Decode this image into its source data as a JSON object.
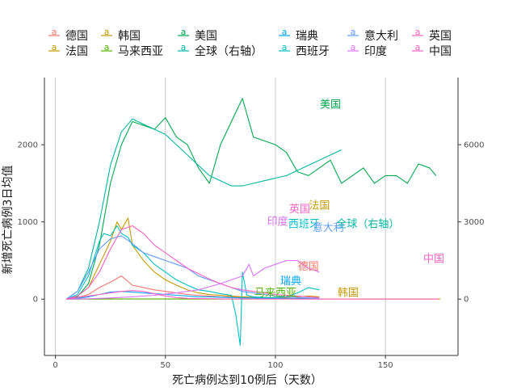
{
  "chart_data": {
    "type": "line",
    "title": "",
    "xlabel": "死亡病例达到10例后（天数）",
    "ylabel": "新增死亡病例3日均值",
    "y2label": "",
    "xlim": [
      -5,
      183
    ],
    "ylim": [
      -730,
      2870
    ],
    "y2lim": [
      -2190,
      8610
    ],
    "xticks": [
      0,
      50,
      100,
      150
    ],
    "yticks": [
      0,
      1000,
      2000
    ],
    "y2ticks": [
      0,
      3000,
      6000
    ],
    "grid": "vertical",
    "legend_position": "top",
    "series": [
      {
        "name": "德国",
        "color": "#F8766D",
        "axis": "left",
        "label_at": [
          115,
          380
        ],
        "x": [
          5,
          10,
          15,
          20,
          25,
          30,
          35,
          40,
          45,
          50,
          55,
          60,
          65,
          70,
          75,
          80,
          85,
          90,
          95,
          100,
          105,
          110,
          115,
          120
        ],
        "y": [
          0,
          20,
          60,
          150,
          220,
          300,
          180,
          150,
          120,
          100,
          80,
          60,
          50,
          40,
          30,
          30,
          20,
          20,
          15,
          10,
          10,
          8,
          5,
          5
        ]
      },
      {
        "name": "法国",
        "color": "#C49A00",
        "axis": "left",
        "label_at": [
          120,
          1170
        ],
        "x": [
          5,
          10,
          15,
          20,
          25,
          28,
          30,
          33,
          35,
          40,
          45,
          50,
          55,
          60,
          65,
          70,
          75,
          80,
          85,
          90,
          95,
          100,
          105,
          110,
          115,
          120
        ],
        "y": [
          0,
          40,
          150,
          450,
          750,
          1000,
          900,
          1050,
          700,
          500,
          350,
          250,
          180,
          120,
          80,
          60,
          50,
          40,
          30,
          25,
          20,
          15,
          20,
          30,
          40,
          30
        ]
      },
      {
        "name": "韩国",
        "color": "#C49A00",
        "axis": "left",
        "label_at": [
          133,
          40
        ],
        "x": [
          5,
          20,
          40,
          60,
          80,
          100,
          120,
          140,
          160,
          175
        ],
        "y": [
          0,
          2,
          3,
          2,
          2,
          1,
          3,
          2,
          1,
          1
        ]
      },
      {
        "name": "马来西亚",
        "color": "#53B400",
        "axis": "left",
        "label_at": [
          100,
          40
        ],
        "x": [
          5,
          20,
          40,
          60,
          80,
          90,
          100,
          110,
          120
        ],
        "y": [
          0,
          1,
          2,
          1,
          1,
          2,
          5,
          8,
          10
        ]
      },
      {
        "name": "美国",
        "color": "#00A94F",
        "axis": "left",
        "label_at": [
          125,
          2480
        ],
        "x": [
          5,
          10,
          15,
          20,
          25,
          30,
          35,
          40,
          45,
          50,
          55,
          60,
          65,
          70,
          75,
          80,
          85,
          90,
          95,
          100,
          105,
          110,
          115,
          120,
          125,
          130,
          135,
          140,
          145,
          150,
          155,
          160,
          165,
          170,
          173
        ],
        "y": [
          0,
          30,
          200,
          700,
          1500,
          2000,
          2300,
          2250,
          2200,
          2350,
          2100,
          2000,
          1700,
          1500,
          2000,
          2300,
          2600,
          2100,
          2050,
          2000,
          1900,
          1650,
          1600,
          1700,
          1800,
          1500,
          1600,
          1700,
          1500,
          1600,
          1600,
          1500,
          1750,
          1700,
          1600
        ]
      },
      {
        "name": "全球（右轴）",
        "color": "#00B6A2",
        "axis": "right",
        "label_at": [
          142,
          2780
        ],
        "x": [
          5,
          10,
          15,
          20,
          25,
          30,
          35,
          40,
          45,
          50,
          55,
          60,
          65,
          70,
          75,
          80,
          85,
          90,
          95,
          100,
          105,
          110,
          115,
          120,
          125,
          130
        ],
        "y": [
          0,
          300,
          1200,
          3000,
          5200,
          6500,
          7000,
          6800,
          6600,
          6400,
          6000,
          5600,
          5200,
          4800,
          4600,
          4400,
          4400,
          4500,
          4600,
          4700,
          4800,
          5000,
          5200,
          5400,
          5600,
          5800
        ]
      },
      {
        "name": "瑞典",
        "color": "#00A5FF",
        "axis": "left",
        "label_at": [
          107,
          190
        ],
        "x": [
          5,
          10,
          15,
          20,
          25,
          30,
          35,
          40,
          45,
          50,
          55,
          60,
          65,
          70,
          75,
          80,
          85,
          90,
          95,
          100,
          105,
          110,
          115,
          120
        ],
        "y": [
          0,
          10,
          30,
          60,
          90,
          100,
          90,
          80,
          70,
          60,
          50,
          40,
          30,
          30,
          25,
          20,
          15,
          15,
          10,
          10,
          10,
          8,
          5,
          5
        ]
      },
      {
        "name": "西班牙",
        "color": "#00BFC4",
        "axis": "left",
        "label_at": [
          113,
          930
        ],
        "x": [
          5,
          10,
          15,
          20,
          22,
          25,
          28,
          30,
          33,
          35,
          40,
          45,
          50,
          55,
          60,
          65,
          70,
          75,
          80,
          82,
          84,
          85,
          86,
          87,
          90,
          95,
          100,
          105,
          110,
          115,
          120
        ],
        "y": [
          0,
          60,
          300,
          750,
          850,
          820,
          950,
          850,
          800,
          700,
          600,
          450,
          350,
          250,
          180,
          120,
          100,
          70,
          50,
          -200,
          -600,
          350,
          200,
          50,
          30,
          20,
          20,
          30,
          80,
          150,
          120
        ]
      },
      {
        "name": "意大利",
        "color": "#619CFF",
        "axis": "left",
        "label_at": [
          124,
          880
        ],
        "x": [
          5,
          10,
          15,
          20,
          25,
          30,
          35,
          40,
          45,
          50,
          55,
          60,
          65,
          70,
          75,
          80,
          85,
          90,
          95,
          100,
          105,
          110,
          115,
          120
        ],
        "y": [
          0,
          100,
          350,
          650,
          780,
          820,
          720,
          600,
          550,
          500,
          450,
          400,
          300,
          250,
          200,
          150,
          100,
          80,
          60,
          40,
          30,
          20,
          15,
          10
        ]
      },
      {
        "name": "印度",
        "color": "#DB72FB",
        "axis": "left",
        "label_at": [
          101,
          960
        ],
        "x": [
          5,
          15,
          25,
          35,
          45,
          55,
          65,
          75,
          80,
          85,
          88,
          90,
          95,
          100,
          105,
          110,
          115,
          120
        ],
        "y": [
          0,
          5,
          15,
          30,
          50,
          80,
          120,
          200,
          250,
          300,
          450,
          300,
          400,
          450,
          500,
          500,
          400,
          350
        ]
      },
      {
        "name": "英国",
        "color": "#FF61C3",
        "axis": "left",
        "label_at": [
          111,
          1120
        ],
        "x": [
          5,
          10,
          15,
          20,
          25,
          30,
          35,
          40,
          45,
          50,
          55,
          60,
          65,
          70,
          75,
          80,
          85,
          90,
          95,
          100,
          105,
          110,
          115,
          120
        ],
        "y": [
          0,
          40,
          150,
          350,
          650,
          900,
          950,
          850,
          700,
          600,
          500,
          400,
          330,
          260,
          200,
          150,
          120,
          100,
          80,
          60,
          50,
          40,
          30,
          20
        ]
      },
      {
        "name": "中国",
        "color": "#FF61C3",
        "axis": "left",
        "label_at": [
          172,
          480
        ],
        "x": [
          5,
          10,
          15,
          20,
          25,
          30,
          35,
          40,
          45,
          50,
          55,
          60,
          80,
          100,
          120,
          140,
          160,
          174
        ],
        "y": [
          0,
          20,
          40,
          60,
          80,
          100,
          110,
          100,
          70,
          40,
          20,
          10,
          2,
          1,
          0,
          0,
          0,
          0
        ]
      }
    ]
  }
}
